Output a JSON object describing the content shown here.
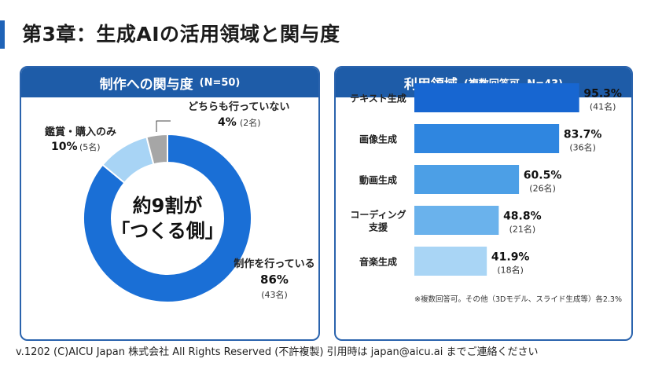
{
  "page_title": "第3章：生成AIの活用領域と関与度",
  "footer": "v.1202 (C)AICU Japan 株式会社 All Rights Reserved (不許複製) 引用時は japan@aicu.ai までご連絡ください",
  "chart_data": [
    {
      "type": "pie",
      "donut": true,
      "title": "制作への関与度",
      "subtitle": "(N=50)",
      "center_text": [
        "約9割が",
        "「つくる側」"
      ],
      "slices": [
        {
          "label": "制作を行っている",
          "percent_label": "86%",
          "count_label": "(43名)",
          "value": 86,
          "color": "#1a6fd6"
        },
        {
          "label": "鑑賞・購入のみ",
          "percent_label": "10%",
          "count_label": "(5名)",
          "value": 10,
          "color": "#a8d4f5"
        },
        {
          "label": "どちらも行っていない",
          "percent_label": "4%",
          "count_label": "(2名)",
          "value": 4,
          "color": "#a6a6a6"
        }
      ]
    },
    {
      "type": "bar",
      "orientation": "horizontal",
      "title": "利用領域",
      "subtitle": "(複数回答可, N=43)",
      "xlim": [
        0,
        100
      ],
      "categories": [
        [
          "テキスト生成"
        ],
        [
          "画像生成"
        ],
        [
          "動画生成"
        ],
        [
          "コーディング",
          "支援"
        ],
        [
          "音楽生成"
        ]
      ],
      "values": [
        95.3,
        83.7,
        60.5,
        48.8,
        41.9
      ],
      "value_labels": [
        "95.3%",
        "83.7%",
        "60.5%",
        "48.8%",
        "41.9%"
      ],
      "count_labels": [
        "(41名)",
        "(36名)",
        "(26名)",
        "(21名)",
        "(18名)"
      ],
      "colors": [
        "#1766d1",
        "#2f86e0",
        "#4c9fe6",
        "#6ab2ec",
        "#a9d5f5"
      ],
      "note": "※複数回答可。その他（3Dモデル、スライド生成等）各2.3%"
    }
  ]
}
